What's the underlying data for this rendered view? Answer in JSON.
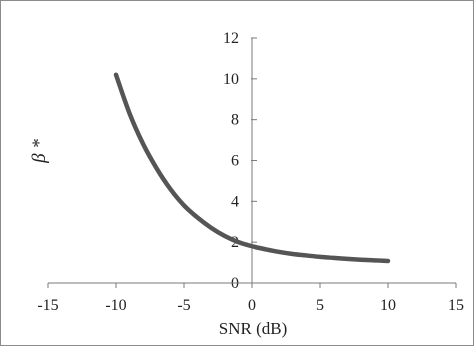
{
  "chart_data": {
    "type": "line",
    "xlabel": "SNR (dB)",
    "ylabel": "β *",
    "xlim": [
      -15,
      15
    ],
    "ylim": [
      0,
      12
    ],
    "x_ticks": [
      -15,
      -10,
      -5,
      0,
      5,
      10,
      15
    ],
    "y_ticks": [
      0,
      2,
      4,
      6,
      8,
      10,
      12
    ],
    "x_tick_labels": [
      "-15",
      "-10",
      "-5",
      "0",
      "5",
      "10",
      "15"
    ],
    "y_tick_labels": [
      "0",
      "2",
      "4",
      "6",
      "8",
      "10",
      "12"
    ],
    "grid": false,
    "legend": "none",
    "series": [
      {
        "color": "#555555",
        "x": [
          -10,
          -9,
          -8,
          -7,
          -6,
          -5,
          -4,
          -3,
          -2,
          -1,
          0,
          1,
          2,
          3,
          4,
          5,
          6,
          7,
          8,
          9,
          10
        ],
        "y": [
          10.2,
          8.3,
          6.8,
          5.6,
          4.6,
          3.8,
          3.2,
          2.7,
          2.3,
          2.0,
          1.8,
          1.65,
          1.52,
          1.42,
          1.35,
          1.28,
          1.23,
          1.18,
          1.14,
          1.11,
          1.08
        ]
      }
    ]
  }
}
